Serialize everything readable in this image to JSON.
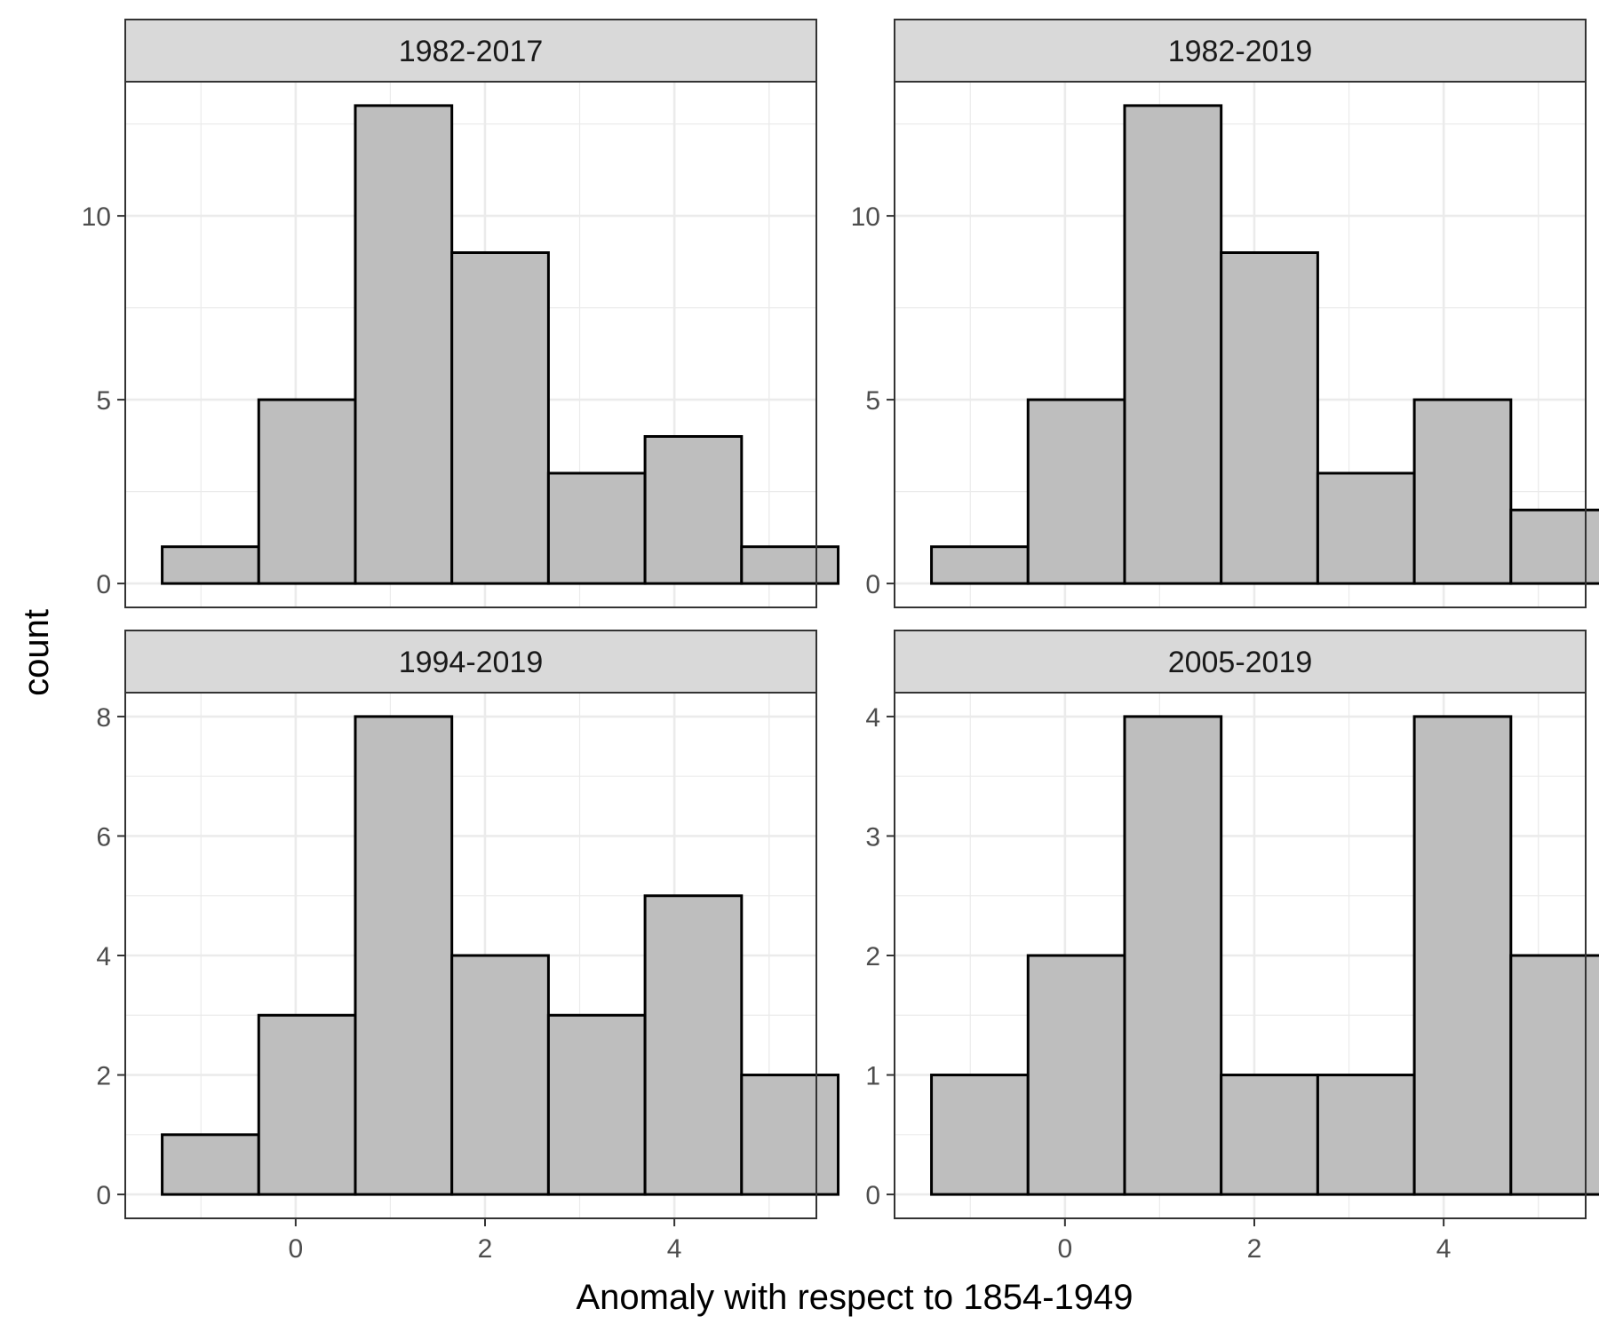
{
  "chart_data": {
    "type": "bar",
    "subtype": "histogram-facets",
    "xlabel": "Anomaly with respect to 1854-1949",
    "ylabel": "count",
    "bin_width": 1.02,
    "bin_centers": [
      -0.9,
      0.12,
      1.14,
      2.16,
      3.18,
      4.2,
      5.22
    ],
    "xlim": [
      -1.8,
      5.5
    ],
    "x_ticks": [
      0,
      2,
      4
    ],
    "grid": true,
    "colors": {
      "bar_fill": "#bebebe",
      "bar_stroke": "#000000",
      "strip_fill": "#d9d9d9",
      "grid": "#ebebeb",
      "panel_border": "#333333"
    },
    "panels": [
      {
        "title": "1982-2017",
        "counts": [
          1,
          5,
          13,
          9,
          3,
          4,
          1
        ],
        "ylim": [
          -0.65,
          13.65
        ],
        "y_ticks": [
          0,
          5,
          10
        ]
      },
      {
        "title": "1982-2019",
        "counts": [
          1,
          5,
          13,
          9,
          3,
          5,
          2
        ],
        "ylim": [
          -0.65,
          13.65
        ],
        "y_ticks": [
          0,
          5,
          10
        ]
      },
      {
        "title": "1994-2019",
        "counts": [
          1,
          3,
          8,
          4,
          3,
          5,
          2
        ],
        "ylim": [
          -0.4,
          8.4
        ],
        "y_ticks": [
          0,
          2,
          4,
          6,
          8
        ]
      },
      {
        "title": "2005-2019",
        "counts": [
          1,
          2,
          4,
          1,
          1,
          4,
          2
        ],
        "ylim": [
          -0.2,
          4.2
        ],
        "y_ticks": [
          0,
          1,
          2,
          3,
          4
        ]
      }
    ]
  }
}
